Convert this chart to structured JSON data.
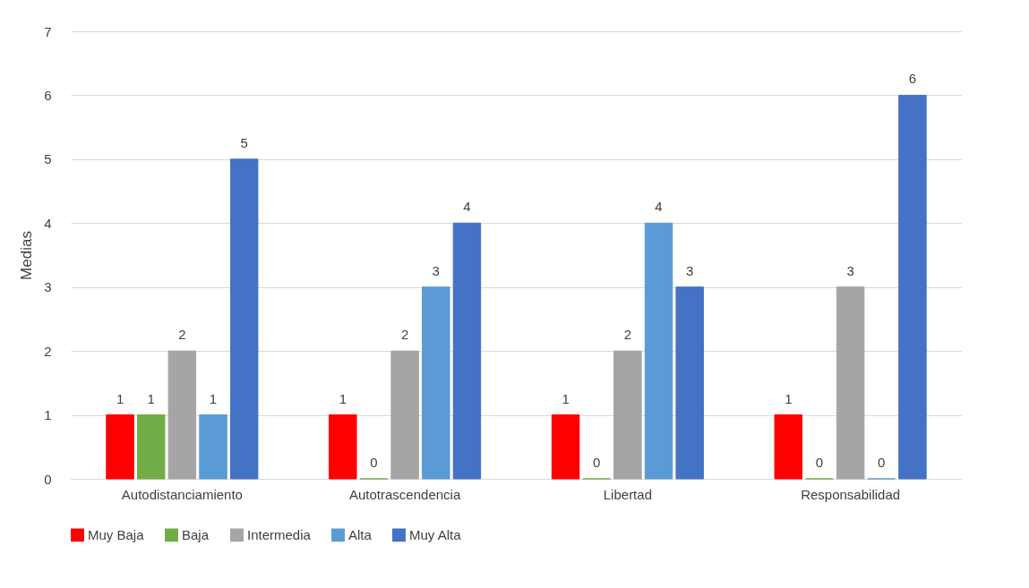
{
  "chart_data": {
    "type": "bar",
    "ylabel": "Medias",
    "categories": [
      "Autodistanciamiento",
      "Autotrascendencia",
      "Libertad",
      "Responsabilidad"
    ],
    "series": [
      {
        "name": "Muy Baja",
        "color": "#ff0000",
        "values": [
          1,
          1,
          1,
          1
        ]
      },
      {
        "name": "Baja",
        "color": "#70ad47",
        "values": [
          1,
          0,
          0,
          0
        ]
      },
      {
        "name": "Intermedia",
        "color": "#a5a5a5",
        "values": [
          2,
          2,
          2,
          3
        ]
      },
      {
        "name": "Alta",
        "color": "#5b9bd5",
        "values": [
          1,
          3,
          4,
          0
        ]
      },
      {
        "name": "Muy Alta",
        "color": "#4472c4",
        "values": [
          5,
          4,
          3,
          6
        ]
      }
    ],
    "ylim": [
      0,
      7
    ],
    "yticks": [
      0,
      1,
      2,
      3,
      4,
      5,
      6,
      7
    ],
    "grid": "y",
    "legend": "bottom",
    "data_labels": true
  }
}
